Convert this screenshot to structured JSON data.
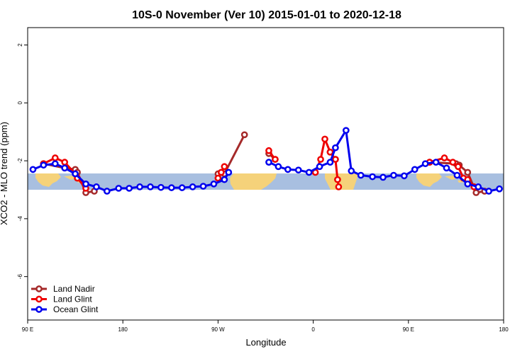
{
  "chart_data": {
    "type": "line",
    "title": "10S-0 November (Ver 10)   2015-01-01 to 2020-12-18",
    "xlabel": "Longitude",
    "ylabel": "XCO2 - MLO trend (ppm)",
    "xlim": [
      0,
      450
    ],
    "ylim": [
      -7.5,
      2.6
    ],
    "x_ticks": [
      {
        "value": 0,
        "label": "90 E"
      },
      {
        "value": 90,
        "label": "180"
      },
      {
        "value": 180,
        "label": "90 W"
      },
      {
        "value": 270,
        "label": "0"
      },
      {
        "value": 360,
        "label": "90 E"
      },
      {
        "value": 450,
        "label": "180"
      }
    ],
    "y_ticks": [
      {
        "value": 2,
        "label": "2"
      },
      {
        "value": 0,
        "label": "0"
      },
      {
        "value": -2,
        "label": "-2"
      },
      {
        "value": -4,
        "label": "-4"
      },
      {
        "value": -6,
        "label": "-6"
      }
    ],
    "grid": false,
    "legend_position": "bottom-left",
    "map_band": {
      "lat_range": [
        -10,
        0
      ],
      "ocean_color": "#a8bfe0",
      "land_color": "#f5d27a"
    },
    "series": [
      {
        "name": "Land Nadir",
        "color": "#a52a2a",
        "segments": [
          [
            [
              15,
              -2.1
            ],
            [
              35,
              -2.25
            ],
            [
              45,
              -2.3
            ],
            [
              47,
              -2.4
            ],
            [
              55,
              -3.1
            ],
            [
              63,
              -3.05
            ]
          ],
          [
            [
              180,
              -2.45
            ],
            [
              183,
              -2.4
            ],
            [
              186,
              -2.45
            ],
            [
              205,
              -1.1
            ]
          ],
          [
            [
              228,
              -1.75
            ],
            [
              234,
              -1.95
            ]
          ],
          [
            [
              286,
              -1.7
            ],
            [
              291,
              -1.95
            ]
          ],
          [
            [
              380,
              -2.05
            ],
            [
              405,
              -2.1
            ],
            [
              408,
              -2.15
            ],
            [
              416,
              -2.4
            ],
            [
              424,
              -3.1
            ],
            [
              432,
              -3.05
            ]
          ]
        ]
      },
      {
        "name": "Land Glint",
        "color": "#ee0000",
        "segments": [
          [
            [
              15,
              -2.1
            ],
            [
              26,
              -1.9
            ],
            [
              35,
              -2.05
            ],
            [
              45,
              -2.45
            ],
            [
              47,
              -2.6
            ],
            [
              55,
              -2.95
            ]
          ],
          [
            [
              180,
              -2.6
            ],
            [
              183,
              -2.4
            ],
            [
              186,
              -2.2
            ]
          ],
          [
            [
              228,
              -1.65
            ],
            [
              234,
              -1.95
            ]
          ],
          [
            [
              272,
              -2.4
            ],
            [
              277,
              -1.95
            ],
            [
              281,
              -1.25
            ],
            [
              286,
              -1.7
            ],
            [
              291,
              -1.95
            ],
            [
              293,
              -2.65
            ],
            [
              294,
              -2.9
            ]
          ],
          [
            [
              380,
              -2.05
            ],
            [
              394,
              -1.9
            ],
            [
              402,
              -2.05
            ],
            [
              407,
              -2.2
            ],
            [
              412,
              -2.6
            ],
            [
              416,
              -2.65
            ],
            [
              422,
              -2.9
            ]
          ]
        ]
      },
      {
        "name": "Ocean Glint",
        "color": "#0000ee",
        "segments": [
          [
            [
              5,
              -2.3
            ],
            [
              15,
              -2.15
            ],
            [
              26,
              -2.1
            ],
            [
              35,
              -2.25
            ],
            [
              45,
              -2.45
            ],
            [
              55,
              -2.8
            ],
            [
              65,
              -2.9
            ],
            [
              75,
              -3.05
            ],
            [
              86,
              -2.95
            ],
            [
              96,
              -2.95
            ],
            [
              106,
              -2.9
            ],
            [
              116,
              -2.9
            ],
            [
              126,
              -2.92
            ],
            [
              136,
              -2.93
            ],
            [
              146,
              -2.93
            ],
            [
              156,
              -2.9
            ],
            [
              166,
              -2.88
            ],
            [
              176,
              -2.8
            ],
            [
              186,
              -2.65
            ],
            [
              190,
              -2.4
            ]
          ],
          [
            [
              228,
              -2.05
            ],
            [
              237,
              -2.2
            ],
            [
              246,
              -2.3
            ],
            [
              256,
              -2.32
            ],
            [
              266,
              -2.4
            ],
            [
              276,
              -2.2
            ],
            [
              286,
              -2.05
            ],
            [
              291,
              -1.55
            ],
            [
              301,
              -0.95
            ],
            [
              306,
              -2.35
            ],
            [
              315,
              -2.5
            ],
            [
              326,
              -2.55
            ],
            [
              336,
              -2.57
            ],
            [
              346,
              -2.5
            ],
            [
              356,
              -2.52
            ],
            [
              366,
              -2.3
            ],
            [
              376,
              -2.1
            ],
            [
              386,
              -2.05
            ],
            [
              396,
              -2.25
            ],
            [
              406,
              -2.5
            ],
            [
              416,
              -2.8
            ],
            [
              426,
              -2.9
            ],
            [
              436,
              -3.05
            ],
            [
              446,
              -2.97
            ]
          ]
        ]
      }
    ]
  }
}
